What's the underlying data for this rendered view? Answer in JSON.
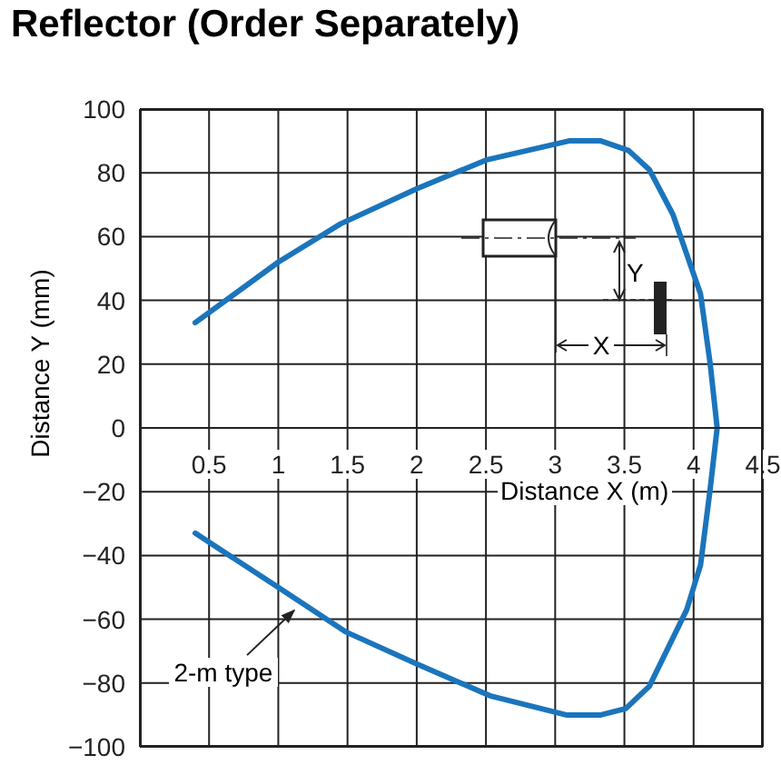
{
  "chart_data": {
    "type": "line",
    "title": "Reflector (Order Separately)",
    "xlabel": "Distance X (m)",
    "ylabel": "Distance Y (mm)",
    "annotations": [
      {
        "text": "2-m type",
        "x": 1.12,
        "y": -57
      },
      "Y",
      "X"
    ],
    "series": [
      {
        "color": "#1b75bc",
        "x": [
          0.4,
          1,
          1.45,
          2,
          2.5,
          3.1,
          3.33,
          3.53,
          3.68,
          3.85,
          4.05,
          4.12,
          4.17,
          4.12,
          4.05,
          3.95,
          3.68,
          3.51,
          3.33,
          3.08,
          2.53,
          2,
          1.49,
          1,
          0.4
        ],
        "values": [
          33,
          52,
          64,
          75,
          84,
          90,
          90,
          87,
          81,
          67,
          42,
          20,
          0,
          -19,
          -43,
          -57,
          -81,
          -88,
          -90,
          -90,
          -84,
          -74,
          -64,
          -50,
          -33
        ]
      }
    ],
    "xlim": [
      0,
      4.5
    ],
    "xticks": [
      0.5,
      1,
      1.5,
      2,
      2.5,
      3,
      3.5,
      4,
      4.5
    ],
    "ylim": [
      -100,
      100
    ],
    "yticks": [
      {
        "value": -100,
        "label": "−100"
      },
      {
        "value": -80,
        "label": "−80"
      },
      {
        "value": -60,
        "label": "−60"
      },
      {
        "value": -40,
        "label": "−40"
      },
      {
        "value": -20,
        "label": "−20"
      },
      {
        "value": 0,
        "label": "0"
      },
      {
        "value": 20,
        "label": "20"
      },
      {
        "value": 40,
        "label": "40"
      },
      {
        "value": 60,
        "label": "60"
      },
      {
        "value": 80,
        "label": "80"
      },
      {
        "value": 100,
        "label": "100"
      }
    ],
    "grid": true,
    "legend": false,
    "marker": "none",
    "line_style": "solid"
  }
}
